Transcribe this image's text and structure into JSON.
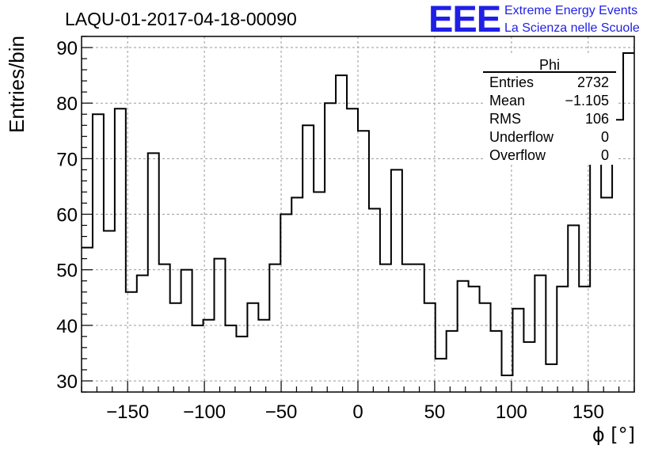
{
  "chart_data": {
    "type": "histogram",
    "title": "LAQU-01-2017-04-18-00090",
    "xlabel": "ϕ [°]",
    "ylabel": "Entries/bin",
    "xlim": [
      -180,
      180
    ],
    "ylim": [
      28,
      92
    ],
    "grid": true,
    "x_ticks": [
      -150,
      -100,
      -50,
      0,
      50,
      100,
      150
    ],
    "x_tick_labels": [
      "−150",
      "−100",
      "−50",
      "0",
      "50",
      "100",
      "150"
    ],
    "y_ticks": [
      30,
      40,
      50,
      60,
      70,
      80,
      90
    ],
    "y_tick_labels": [
      "30",
      "40",
      "50",
      "60",
      "70",
      "80",
      "90"
    ],
    "bin_width": 7.2,
    "bin_start": -180,
    "values": [
      54,
      78,
      57,
      79,
      46,
      49,
      71,
      51,
      44,
      50,
      40,
      41,
      52,
      40,
      38,
      44,
      41,
      51,
      60,
      63,
      76,
      64,
      80,
      85,
      79,
      75,
      61,
      51,
      68,
      51,
      51,
      44,
      34,
      39,
      48,
      47,
      44,
      39,
      31,
      43,
      37,
      49,
      33,
      47,
      58,
      47,
      73,
      63,
      77,
      89
    ]
  },
  "stats_box": {
    "title": "Phi",
    "rows": [
      {
        "label": "Entries",
        "value": "2732"
      },
      {
        "label": "Mean",
        "value": "−1.105"
      },
      {
        "label": "RMS",
        "value": "106"
      },
      {
        "label": "Underflow",
        "value": "0"
      },
      {
        "label": "Overflow",
        "value": "0"
      }
    ]
  },
  "logo": {
    "mark": "EEE",
    "line1": "Extreme Energy Events",
    "line2": "La Scienza nelle Scuole",
    "color": "#1f1fe6"
  }
}
